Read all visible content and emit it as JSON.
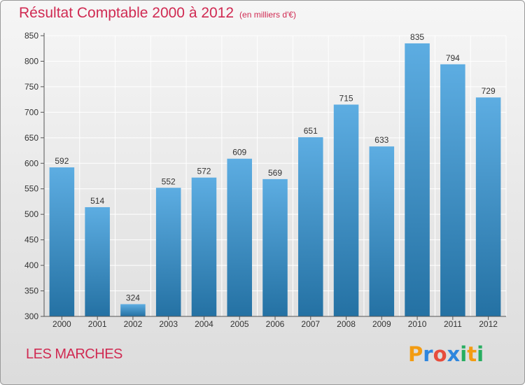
{
  "header": {
    "title": "Résultat Comptable 2000 à 2012",
    "subtitle": "(en milliers d'€)"
  },
  "footer": {
    "commune": "LES MARCHES",
    "brand": {
      "letters": [
        "P",
        "r",
        "o",
        "x",
        "i",
        "t",
        "i"
      ],
      "colors": [
        "#f39c12",
        "#2e86de",
        "#e74c3c",
        "#2e86de",
        "#27ae60",
        "#f39c12",
        "#27ae60"
      ]
    }
  },
  "colors": {
    "bar_light": "#5dade2",
    "bar_dark": "#2471a3",
    "title": "#d02a52"
  },
  "chart_data": {
    "type": "bar",
    "title": "Résultat Comptable 2000 à 2012",
    "xlabel": "",
    "ylabel": "",
    "categories": [
      "2000",
      "2001",
      "2002",
      "2003",
      "2004",
      "2005",
      "2006",
      "2007",
      "2008",
      "2009",
      "2010",
      "2011",
      "2012"
    ],
    "values": [
      592,
      514,
      324,
      552,
      572,
      609,
      569,
      651,
      715,
      633,
      835,
      794,
      729
    ],
    "ylim": [
      300,
      850
    ],
    "yticks": [
      300,
      350,
      400,
      450,
      500,
      550,
      600,
      650,
      700,
      750,
      800,
      850
    ],
    "grid": true
  }
}
